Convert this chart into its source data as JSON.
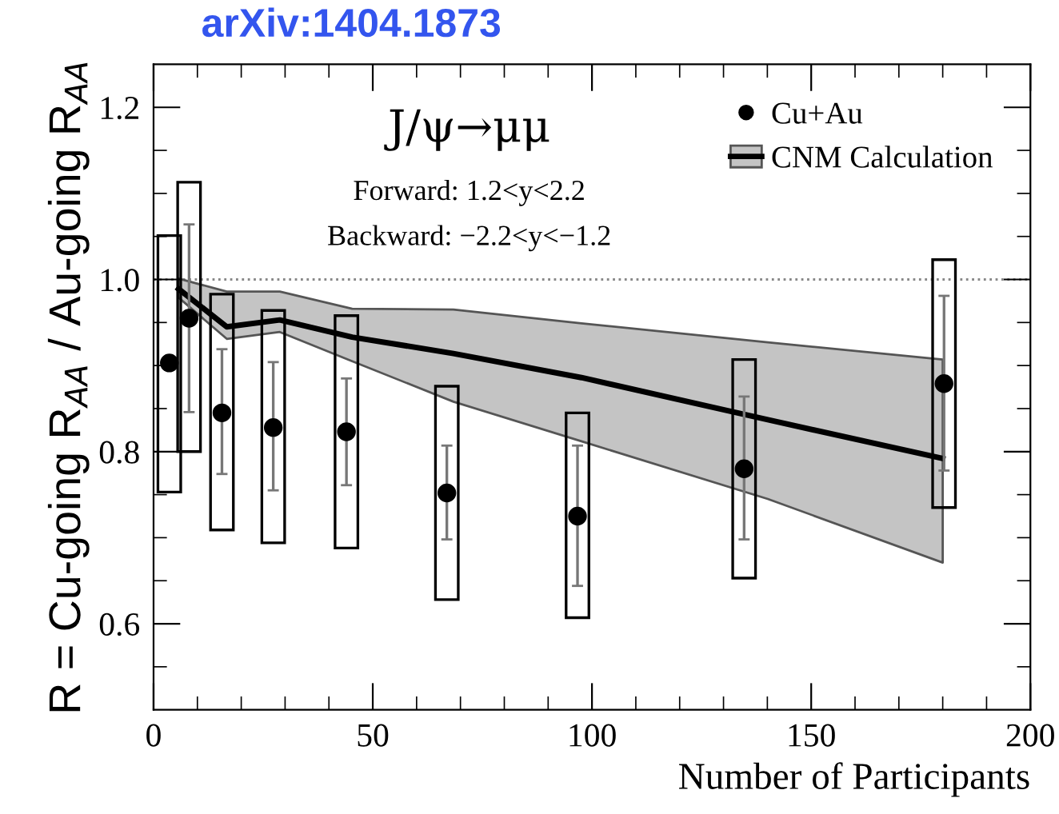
{
  "chart_data": {
    "type": "scatter",
    "title": "J/ψ→μμ",
    "xlabel": "Number of Participants",
    "ylabel": "R = Cu-going R$_{AA}$ / Au-going R$_{AA}$",
    "annotations": [
      "Forward: 1.2<y<2.2",
      "Backward: −2.2<y<−1.2",
      "arXiv:1404.1873"
    ],
    "xlim": [
      0,
      200
    ],
    "ylim": [
      0.5,
      1.25
    ],
    "xticks": [
      0,
      {
        "value": 10,
        "label": null
      },
      {
        "value": 20,
        "label": null
      },
      {
        "value": 30,
        "label": null
      },
      {
        "value": 40,
        "label": null
      },
      50,
      {
        "value": 60,
        "label": null
      },
      {
        "value": 70,
        "label": null
      },
      {
        "value": 80,
        "label": null
      },
      {
        "value": 90,
        "label": null
      },
      100,
      {
        "value": 110,
        "label": null
      },
      {
        "value": 120,
        "label": null
      },
      {
        "value": 130,
        "label": null
      },
      {
        "value": 140,
        "label": null
      },
      150,
      {
        "value": 160,
        "label": null
      },
      {
        "value": 170,
        "label": null
      },
      {
        "value": 180,
        "label": null
      },
      {
        "value": 190,
        "label": null
      },
      200
    ],
    "yticks": [
      {
        "value": 0.55,
        "label": null
      },
      0.6,
      {
        "value": 0.65,
        "label": null
      },
      {
        "value": 0.7,
        "label": null
      },
      {
        "value": 0.75,
        "label": null
      },
      0.8,
      {
        "value": 0.85,
        "label": null
      },
      {
        "value": 0.9,
        "label": null
      },
      {
        "value": 0.95,
        "label": null
      },
      {
        "value": 1,
        "label": "1.0"
      },
      {
        "value": 1.05,
        "label": null
      },
      {
        "value": 1.1,
        "label": null
      },
      {
        "value": 1.15,
        "label": null
      },
      1.2
    ],
    "ref_lines": [
      {
        "axis": "y",
        "value": 1,
        "line_style": "dotted",
        "color": "#888888"
      }
    ],
    "legend": "top right",
    "grid": false,
    "series": [
      {
        "name": "Cu+Au",
        "marker": "circle",
        "color": "#000000",
        "x": [
          3.6,
          8.1,
          15.6,
          27.3,
          44.0,
          66.9,
          96.7,
          134.7,
          180.3
        ],
        "values": [
          0.903,
          0.955,
          0.845,
          0.828,
          0.823,
          0.752,
          0.725,
          0.78,
          0.879
        ],
        "errors": [
          null,
          [
            0.846,
            1.064
          ],
          [
            0.774,
            0.919
          ],
          [
            0.755,
            0.904
          ],
          [
            0.761,
            0.885
          ],
          [
            0.698,
            0.807
          ],
          [
            0.644,
            0.807
          ],
          [
            0.698,
            0.864
          ],
          [
            0.778,
            0.981
          ]
        ]
      },
      {
        "type": "line",
        "name": "CNM Calculation",
        "color": "#000000",
        "x": [
          5.7,
          16.7,
          28.8,
          45.3,
          68.4,
          97.6,
          140.1,
          180
        ],
        "values": [
          0.989,
          0.945,
          0.953,
          0.933,
          0.914,
          0.886,
          0.837,
          0.792
        ],
        "lower": [
          0.979,
          0.931,
          0.939,
          0.905,
          0.858,
          0.812,
          0.745,
          0.671
        ],
        "upper": [
          1.001,
          0.986,
          0.986,
          0.966,
          0.965,
          0.949,
          0.927,
          0.907
        ]
      },
      {
        "type": "bar",
        "color": "#000000",
        "x": [
          3.6,
          8.1,
          15.6,
          27.3,
          44.0,
          66.9,
          96.7,
          134.7,
          180.3
        ],
        "base": [
          0.753,
          0.8,
          0.709,
          0.694,
          0.688,
          0.628,
          0.607,
          0.653,
          0.735
        ],
        "values": [
          0.298,
          0.313,
          0.274,
          0.27,
          0.27,
          0.248,
          0.238,
          0.254,
          0.288
        ]
      }
    ]
  }
}
